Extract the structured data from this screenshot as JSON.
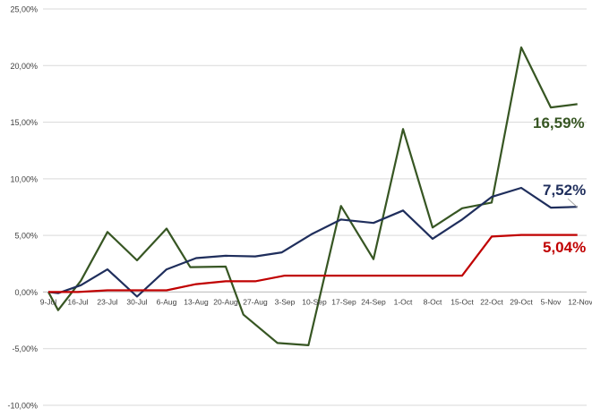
{
  "chart_data": {
    "type": "line",
    "title": "",
    "xlabel": "",
    "ylabel": "",
    "ylim": [
      -10,
      25
    ],
    "y_ticks": [
      "25,00%",
      "20,00%",
      "15,00%",
      "10,00%",
      "5,00%",
      "0,00%",
      "-5,00%",
      "-10,00%"
    ],
    "x": [
      "9-Jul",
      "16-Jul",
      "23-Jul",
      "30-Jul",
      "6-Aug",
      "13-Aug",
      "20-Aug",
      "27-Aug",
      "3-Sep",
      "10-Sep",
      "17-Sep",
      "24-Sep",
      "1-Oct",
      "8-Oct",
      "15-Oct",
      "22-Oct",
      "29-Oct",
      "5-Nov",
      "12-Nov"
    ],
    "grid": true,
    "series": [
      {
        "color": "#375623",
        "end_label": "16,59%",
        "points": [
          [
            0,
            0.0
          ],
          [
            0.33,
            -1.6
          ],
          [
            1.1,
            1.0
          ],
          [
            2.0,
            5.3
          ],
          [
            3.0,
            2.8
          ],
          [
            4.0,
            5.6
          ],
          [
            4.8,
            2.2
          ],
          [
            6.0,
            2.25
          ],
          [
            6.6,
            -2.0
          ],
          [
            7.75,
            -4.5
          ],
          [
            8.8,
            -4.7
          ],
          [
            9.9,
            7.6
          ],
          [
            11.0,
            2.9
          ],
          [
            12.0,
            14.4
          ],
          [
            13.0,
            5.7
          ],
          [
            14.0,
            7.4
          ],
          [
            15.0,
            7.9
          ],
          [
            16.0,
            21.6
          ],
          [
            17.0,
            16.3
          ],
          [
            17.9,
            16.59
          ]
        ]
      },
      {
        "color": "#1f2e5c",
        "end_label": "7,52%",
        "points": [
          [
            0,
            0.0
          ],
          [
            0.33,
            -0.1
          ],
          [
            1.1,
            0.6
          ],
          [
            2.0,
            2.0
          ],
          [
            3.0,
            -0.4
          ],
          [
            4.0,
            2.0
          ],
          [
            5.0,
            3.0
          ],
          [
            6.0,
            3.2
          ],
          [
            7.0,
            3.15
          ],
          [
            7.9,
            3.5
          ],
          [
            8.9,
            5.1
          ],
          [
            9.9,
            6.4
          ],
          [
            11.0,
            6.1
          ],
          [
            12.0,
            7.2
          ],
          [
            13.0,
            4.7
          ],
          [
            14.0,
            6.4
          ],
          [
            15.0,
            8.4
          ],
          [
            16.0,
            9.2
          ],
          [
            17.0,
            7.45
          ],
          [
            17.9,
            7.52
          ]
        ]
      },
      {
        "color": "#c00000",
        "end_label": "5,04%",
        "points": [
          [
            0,
            0.0
          ],
          [
            1.0,
            0.0
          ],
          [
            2.0,
            0.15
          ],
          [
            3.0,
            0.15
          ],
          [
            4.0,
            0.15
          ],
          [
            5.0,
            0.7
          ],
          [
            6.0,
            0.95
          ],
          [
            7.0,
            0.95
          ],
          [
            8.0,
            1.45
          ],
          [
            9.0,
            1.45
          ],
          [
            10.0,
            1.45
          ],
          [
            11.0,
            1.45
          ],
          [
            12.0,
            1.45
          ],
          [
            13.0,
            1.45
          ],
          [
            14.0,
            1.45
          ],
          [
            15.0,
            4.9
          ],
          [
            16.0,
            5.04
          ],
          [
            17.0,
            5.04
          ],
          [
            17.9,
            5.04
          ]
        ]
      }
    ]
  }
}
